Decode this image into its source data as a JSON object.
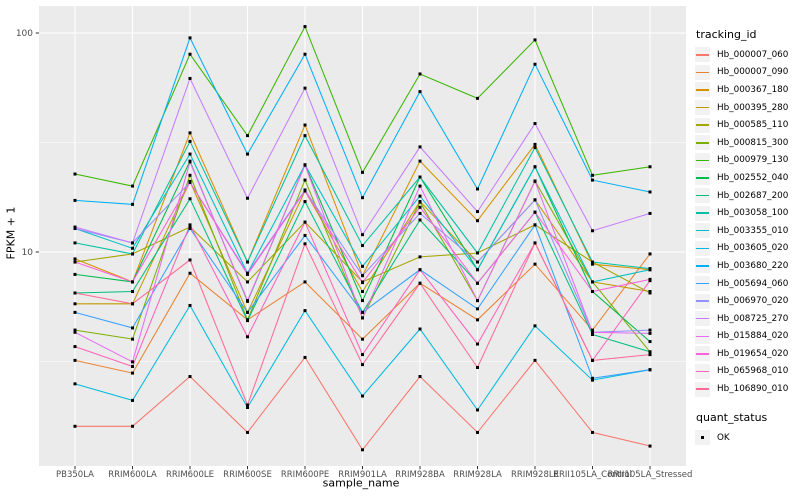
{
  "figure": {
    "background": "#FFFFFF",
    "panel_background": "#EBEBEB",
    "grid_color": "#FFFFFF",
    "tick_color": "#333333",
    "tick_label_color": "#4D4D4D",
    "point_color": "#000000"
  },
  "chart_data": {
    "type": "line",
    "title": "",
    "xlabel": "sample_name",
    "ylabel": "FPKM + 1",
    "y_scale": "log10",
    "grid": true,
    "legend_position": "right",
    "y_ticks": [
      10,
      100
    ],
    "y_tick_labels": [
      "10",
      "100"
    ],
    "y_minor_ticks": [
      3.162,
      31.623
    ],
    "ylim": [
      1.15,
      130
    ],
    "categories": [
      "PB350LA",
      "RRIM600LA",
      "RRIM600LE",
      "RRIM600SE",
      "RRIM600PE",
      "RRIM901LA",
      "RRIM928BA",
      "RRIM928LA",
      "RRIM928LE",
      "RRII105LA_Control",
      "RRII105LA_Stressed"
    ],
    "series": [
      {
        "name": "Hb_000007_060",
        "color": "#F8766D",
        "values": [
          1.6,
          1.6,
          2.7,
          1.5,
          3.3,
          1.25,
          2.7,
          1.5,
          3.2,
          1.5,
          1.3
        ]
      },
      {
        "name": "Hb_000007_090",
        "color": "#EA8331",
        "values": [
          3.2,
          2.8,
          8.0,
          4.9,
          7.3,
          4.0,
          7.2,
          4.9,
          8.8,
          4.4,
          9.8
        ]
      },
      {
        "name": "Hb_000367_180",
        "color": "#D89000",
        "values": [
          9.3,
          7.3,
          35,
          9.0,
          38,
          7.8,
          26,
          13.9,
          31,
          8.8,
          8.3
        ]
      },
      {
        "name": "Hb_000395_280",
        "color": "#C09B00",
        "values": [
          5.8,
          5.8,
          21,
          5.3,
          19,
          6.6,
          17,
          9.0,
          17.3,
          7.3,
          6.6
        ]
      },
      {
        "name": "Hb_000585_110",
        "color": "#A3A500",
        "values": [
          9.0,
          9.8,
          13,
          7.3,
          13.7,
          7.3,
          9.5,
          9.9,
          13.3,
          9.0,
          6.5
        ]
      },
      {
        "name": "Hb_000815_300",
        "color": "#7CAE00",
        "values": [
          4.4,
          4.0,
          22.4,
          4.9,
          21.3,
          5.0,
          16.9,
          6.0,
          21.1,
          7.3,
          3.5
        ]
      },
      {
        "name": "Hb_000979_130",
        "color": "#39B600",
        "values": [
          22.7,
          20,
          80,
          34,
          107,
          23.1,
          65,
          50.3,
          93,
          22.4,
          24.5
        ]
      },
      {
        "name": "Hb_002552_040",
        "color": "#00BB4E",
        "values": [
          7.9,
          7.3,
          26,
          5.95,
          25,
          6.0,
          22,
          8.3,
          24.5,
          6.6,
          3.9
        ]
      },
      {
        "name": "Hb_002687_200",
        "color": "#00BF7D",
        "values": [
          6.5,
          6.6,
          17.5,
          4.86,
          17,
          5.3,
          14,
          7.2,
          15.2,
          4.2,
          3.5
        ]
      },
      {
        "name": "Hb_003058_100",
        "color": "#00C1A3",
        "values": [
          11,
          9.8,
          32,
          9.0,
          34,
          10.7,
          22,
          9.9,
          30,
          9.0,
          8.4
        ]
      },
      {
        "name": "Hb_003355_010",
        "color": "#00BFC4",
        "values": [
          12.8,
          10.4,
          28,
          8.0,
          25,
          8.6,
          18,
          8.3,
          24.5,
          7.3,
          8.3
        ]
      },
      {
        "name": "Hb_003605_020",
        "color": "#00BAE0",
        "values": [
          2.5,
          2.1,
          5.7,
          1.95,
          5.4,
          2.2,
          4.45,
          1.9,
          4.6,
          2.6,
          2.9
        ]
      },
      {
        "name": "Hb_003680_220",
        "color": "#00B0F6",
        "values": [
          17.2,
          16.5,
          95,
          28,
          80,
          17.7,
          54,
          19.4,
          72,
          21.3,
          18.8
        ]
      },
      {
        "name": "Hb_005694_060",
        "color": "#35A2FF",
        "values": [
          5.3,
          4.5,
          12.8,
          5.3,
          11.9,
          5.3,
          8.3,
          5.5,
          13.3,
          2.65,
          2.9
        ]
      },
      {
        "name": "Hb_006970_020",
        "color": "#9590FF",
        "values": [
          12.8,
          11,
          20.8,
          8.0,
          19.2,
          7.8,
          15,
          9.0,
          17.3,
          4.3,
          4.4
        ]
      },
      {
        "name": "Hb_008725_270",
        "color": "#C77CFF",
        "values": [
          13,
          11,
          62,
          17.6,
          56,
          12,
          30.2,
          15.3,
          38.6,
          12.5,
          15
        ]
      },
      {
        "name": "Hb_015884_020",
        "color": "#E76BF3",
        "values": [
          4.3,
          3.15,
          25.8,
          6.0,
          24.9,
          5.0,
          20,
          6.0,
          21,
          4.3,
          4.25
        ]
      },
      {
        "name": "Hb_019654_020",
        "color": "#FA62DB",
        "values": [
          9.0,
          7.3,
          20.8,
          7.9,
          19,
          7.25,
          16,
          7.2,
          15.2,
          6.6,
          7.5
        ]
      },
      {
        "name": "Hb_065968_010",
        "color": "#FF62BC",
        "values": [
          3.7,
          3.0,
          13.3,
          4.1,
          13.7,
          3.4,
          8.3,
          3.8,
          11,
          3.2,
          7.4
        ]
      },
      {
        "name": "Hb_106890_010",
        "color": "#FF6A98",
        "values": [
          6.5,
          5.8,
          9.2,
          2.0,
          10.9,
          3.06,
          7.2,
          2.97,
          11,
          3.2,
          3.4
        ]
      }
    ],
    "legend": {
      "color_legend_title": "tracking_id",
      "shape_legend_title": "quant_status",
      "shape_legend_items": [
        {
          "label": "OK",
          "shape": "filled-square",
          "color": "#000000"
        }
      ]
    }
  }
}
